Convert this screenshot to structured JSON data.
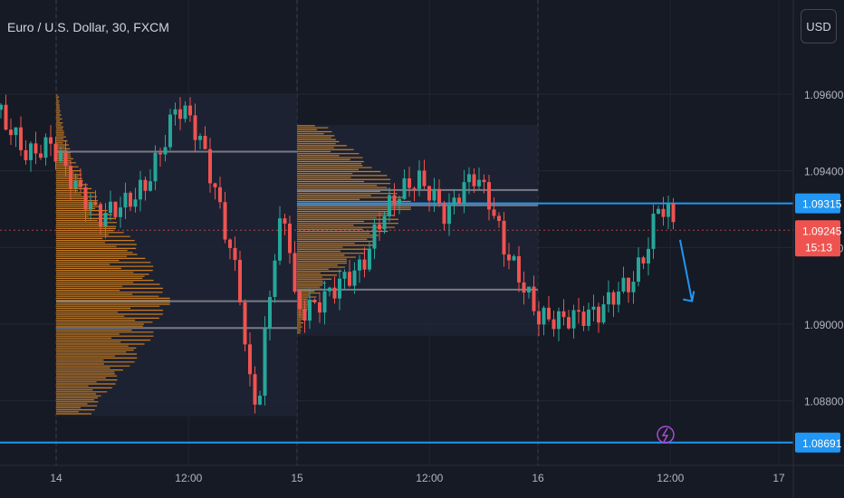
{
  "header": {
    "title": "Euro / U.S. Dollar, 30, FXCM",
    "currency_button": "USD"
  },
  "colors": {
    "background": "#161a25",
    "bull": "#26a69a",
    "bear": "#ef5350",
    "volume_profile": "#f7931a",
    "profile_box": "#1e2535",
    "poc_line": "#787b86",
    "level_line": "#2196f3",
    "current_price": "#ef5350",
    "alert_icon": "#a64fd1"
  },
  "chart_data": {
    "type": "candlestick",
    "symbol": "Euro / U.S. Dollar",
    "interval": "30",
    "source": "FXCM",
    "ylim": [
      1.0864,
      1.0972
    ],
    "y_ticks": [
      1.096,
      1.094,
      1.092,
      1.09,
      1.088
    ],
    "y_tick_labels": [
      "1.09600",
      "1.09400",
      "1.09200",
      "1.09000",
      "1.08800"
    ],
    "x_ticks": [
      {
        "label": "14",
        "pos": 0.7
      },
      {
        "label": "12:00",
        "pos": 1.25
      },
      {
        "label": "15",
        "pos": 1.7
      },
      {
        "label": "12:00",
        "pos": 2.25
      },
      {
        "label": "16",
        "pos": 2.7
      },
      {
        "label": "12:00",
        "pos": 3.25
      },
      {
        "label": "17",
        "pos": 3.7
      }
    ],
    "session_separators": [
      0.7,
      1.7,
      2.7
    ],
    "price_path": [
      [
        0.45,
        1.09565
      ],
      [
        0.58,
        1.0944
      ],
      [
        0.68,
        1.0947
      ],
      [
        0.78,
        1.0936
      ],
      [
        0.88,
        1.0928
      ],
      [
        1.0,
        1.0932
      ],
      [
        1.07,
        1.0936
      ],
      [
        1.14,
        1.0946
      ],
      [
        1.2,
        1.0957
      ],
      [
        1.26,
        1.09535
      ],
      [
        1.32,
        1.0944
      ],
      [
        1.38,
        1.093
      ],
      [
        1.46,
        1.091
      ],
      [
        1.5,
        1.0885
      ],
      [
        1.54,
        1.08785
      ],
      [
        1.58,
        1.0905
      ],
      [
        1.62,
        1.0924
      ],
      [
        1.66,
        1.0928
      ],
      [
        1.69,
        1.0906
      ],
      [
        1.72,
        1.0903
      ],
      [
        1.8,
        1.0906
      ],
      [
        1.88,
        1.0911
      ],
      [
        1.97,
        1.0915
      ],
      [
        2.05,
        1.0928
      ],
      [
        2.12,
        1.0934
      ],
      [
        2.2,
        1.0938
      ],
      [
        2.26,
        1.0934
      ],
      [
        2.32,
        1.0928
      ],
      [
        2.38,
        1.0935
      ],
      [
        2.44,
        1.0939
      ],
      [
        2.5,
        1.0932
      ],
      [
        2.56,
        1.092
      ],
      [
        2.64,
        1.091
      ],
      [
        2.7,
        1.0902
      ],
      [
        2.78,
        1.0901
      ],
      [
        2.86,
        1.0902
      ],
      [
        2.95,
        1.0903
      ],
      [
        3.02,
        1.0908
      ],
      [
        3.09,
        1.0911
      ],
      [
        3.15,
        1.0919
      ],
      [
        3.2,
        1.0931
      ],
      [
        3.25,
        1.09285
      ],
      [
        3.28,
        1.09245
      ]
    ],
    "horizontal_levels": [
      {
        "price": 1.09315,
        "label": "1.09315",
        "x_start": 1.7,
        "color": "#2196f3"
      },
      {
        "price": 1.08691,
        "label": "1.08691",
        "x_start": 0,
        "color": "#2196f3"
      }
    ],
    "current_price": {
      "price": 1.09245,
      "label": "1.09245",
      "countdown": "15:13"
    },
    "volume_profiles": [
      {
        "x_start": 0.7,
        "x_end": 1.7,
        "price_low": 1.0876,
        "price_high": 1.096,
        "poc": 1.0906,
        "value_area_high": 1.0945,
        "value_area_low": 1.0899
      },
      {
        "x_start": 1.7,
        "x_end": 2.7,
        "price_low": 1.0897,
        "price_high": 1.0952,
        "poc": 1.0931,
        "value_area_high": 1.0935,
        "value_area_low": 1.0909
      }
    ],
    "projection_arrow": [
      [
        3.29,
        1.0922
      ],
      [
        3.34,
        1.0906
      ]
    ]
  }
}
